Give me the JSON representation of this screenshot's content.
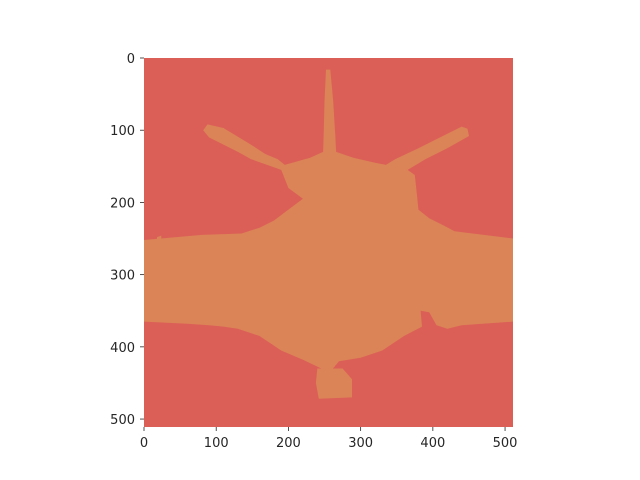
{
  "chart_data": {
    "type": "heatmap",
    "title": "",
    "xlabel": "",
    "ylabel": "",
    "xlim": [
      0,
      511
    ],
    "ylim": [
      511,
      0
    ],
    "grid": false,
    "x_ticks": [
      0,
      100,
      200,
      300,
      400,
      500
    ],
    "y_ticks": [
      0,
      100,
      200,
      300,
      400,
      500
    ],
    "classes": [
      {
        "name": "background",
        "color": "#db5f57"
      },
      {
        "name": "object",
        "color": "#db8457"
      }
    ],
    "object_outline": [
      [
        252,
        16
      ],
      [
        258,
        16
      ],
      [
        262,
        60
      ],
      [
        265,
        110
      ],
      [
        266,
        130
      ],
      [
        290,
        138
      ],
      [
        320,
        145
      ],
      [
        335,
        148
      ],
      [
        348,
        140
      ],
      [
        380,
        125
      ],
      [
        410,
        110
      ],
      [
        440,
        95
      ],
      [
        448,
        98
      ],
      [
        450,
        108
      ],
      [
        420,
        125
      ],
      [
        390,
        140
      ],
      [
        365,
        155
      ],
      [
        375,
        162
      ],
      [
        378,
        190
      ],
      [
        380,
        210
      ],
      [
        395,
        222
      ],
      [
        415,
        232
      ],
      [
        430,
        240
      ],
      [
        511,
        250
      ],
      [
        511,
        365
      ],
      [
        440,
        370
      ],
      [
        420,
        375
      ],
      [
        405,
        370
      ],
      [
        395,
        352
      ],
      [
        383,
        350
      ],
      [
        385,
        372
      ],
      [
        360,
        385
      ],
      [
        345,
        395
      ],
      [
        330,
        405
      ],
      [
        300,
        415
      ],
      [
        270,
        420
      ],
      [
        260,
        432
      ],
      [
        250,
        432
      ],
      [
        220,
        418
      ],
      [
        190,
        405
      ],
      [
        175,
        395
      ],
      [
        160,
        385
      ],
      [
        130,
        375
      ],
      [
        110,
        372
      ],
      [
        90,
        370
      ],
      [
        60,
        368
      ],
      [
        0,
        365
      ],
      [
        0,
        252
      ],
      [
        80,
        245
      ],
      [
        135,
        243
      ],
      [
        160,
        235
      ],
      [
        180,
        225
      ],
      [
        200,
        210
      ],
      [
        220,
        195
      ],
      [
        200,
        180
      ],
      [
        190,
        155
      ],
      [
        148,
        140
      ],
      [
        130,
        130
      ],
      [
        90,
        110
      ],
      [
        82,
        100
      ],
      [
        88,
        92
      ],
      [
        110,
        97
      ],
      [
        145,
        118
      ],
      [
        168,
        133
      ],
      [
        185,
        140
      ],
      [
        195,
        148
      ],
      [
        230,
        138
      ],
      [
        248,
        130
      ],
      [
        249,
        100
      ],
      [
        250,
        60
      ]
    ],
    "object_blobs": [
      [
        [
          240,
          430
        ],
        [
          275,
          430
        ],
        [
          288,
          445
        ],
        [
          288,
          470
        ],
        [
          242,
          472
        ],
        [
          238,
          450
        ]
      ],
      [
        [
          18,
          248
        ],
        [
          24,
          246
        ],
        [
          24,
          252
        ],
        [
          18,
          252
        ]
      ]
    ]
  }
}
